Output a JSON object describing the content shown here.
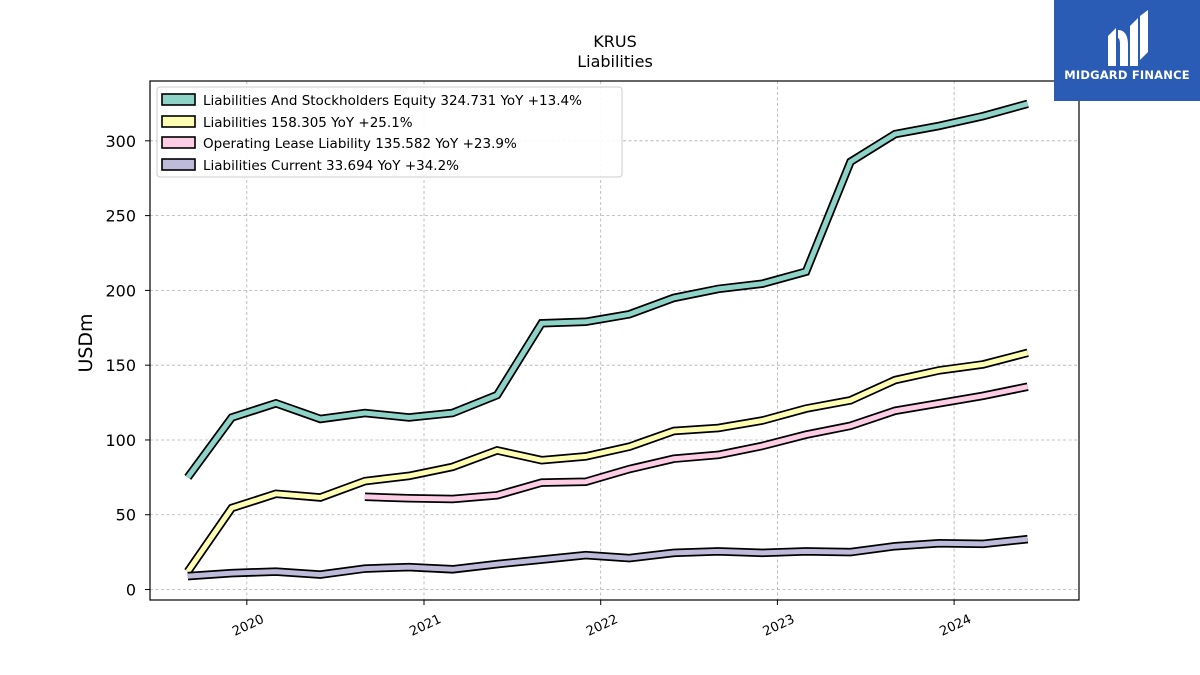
{
  "brand": {
    "name": "MIDGARD FINANCE",
    "bg_color": "#2a5bb5"
  },
  "chart_data": {
    "type": "line",
    "title": "KRUS",
    "subtitle": "Liabilities",
    "ylabel": "USDm",
    "xlabel": "",
    "ylim": [
      -7,
      340
    ],
    "xlim": [
      "2019-06-15",
      "2024-09-15"
    ],
    "yticks": [
      0,
      50,
      100,
      150,
      200,
      250,
      300
    ],
    "xticks": [
      {
        "label": "2020",
        "date": "2020-01-01"
      },
      {
        "label": "2021",
        "date": "2021-01-01"
      },
      {
        "label": "2022",
        "date": "2022-01-01"
      },
      {
        "label": "2023",
        "date": "2023-01-01"
      },
      {
        "label": "2024",
        "date": "2024-01-01"
      }
    ],
    "grid": true,
    "legend_position": "top-left",
    "dates": [
      "2019-09-01",
      "2019-12-01",
      "2020-03-01",
      "2020-06-01",
      "2020-09-01",
      "2020-12-01",
      "2021-03-01",
      "2021-06-01",
      "2021-09-01",
      "2021-12-01",
      "2022-03-01",
      "2022-06-01",
      "2022-09-01",
      "2022-12-01",
      "2023-03-01",
      "2023-06-01",
      "2023-09-01",
      "2023-12-01",
      "2024-03-01",
      "2024-06-01"
    ],
    "series": [
      {
        "name": "Liabilities And Stockholders Equity  324.731 YoY +13.4%",
        "color": "#8dd3c7",
        "values": [
          75,
          115,
          124.5,
          114,
          118,
          115,
          118,
          130,
          178,
          179,
          184,
          195,
          201,
          204.5,
          212.5,
          286,
          304.5,
          310,
          316.5,
          324.731
        ]
      },
      {
        "name": "Liabilities  158.305 YoY +25.1%",
        "color": "#ffffb3",
        "values": [
          12,
          54.5,
          64,
          61.5,
          72.5,
          76,
          82,
          93,
          86.5,
          89,
          95.5,
          106,
          108,
          113,
          121,
          126.5,
          140,
          146.5,
          150.5,
          158.305
        ]
      },
      {
        "name": "Operating Lease Liability  135.582 YoY +23.9%",
        "color": "#fccde5",
        "values": [
          null,
          null,
          null,
          null,
          62,
          61,
          60.5,
          63,
          71.5,
          72,
          80.5,
          87.5,
          90,
          96,
          103.5,
          109.5,
          119.5,
          124.5,
          129.5,
          135.582
        ]
      },
      {
        "name": "Liabilities Current  33.694 YoY +34.2%",
        "color": "#bebada",
        "values": [
          9,
          11,
          12,
          10,
          14,
          15,
          13.5,
          17,
          20,
          23,
          21,
          24.5,
          25.5,
          24.5,
          25.5,
          25,
          29,
          31,
          30.5,
          33.694
        ]
      }
    ]
  }
}
